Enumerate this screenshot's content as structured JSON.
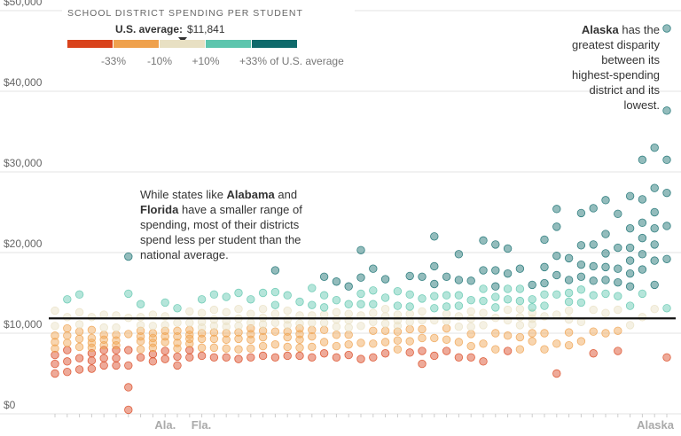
{
  "chart_data": {
    "type": "strip",
    "title": "SCHOOL DISTRICT SPENDING PER STUDENT",
    "average_label": "U.S. average:",
    "average": {
      "value": 11841,
      "label": "$11,841"
    },
    "color_scale": {
      "colors": [
        "#d9431c",
        "#efa14d",
        "#e8e0c3",
        "#5cc5ad",
        "#0f6a6b"
      ],
      "breaks": [
        {
          "value": -33,
          "label": "-33%"
        },
        {
          "value": -10,
          "label": "-10%"
        },
        {
          "value": 10,
          "label": "+10%"
        },
        {
          "value": 33,
          "label": "+33% of U.S. average"
        }
      ]
    },
    "ylim": [
      0,
      50000
    ],
    "yticks": [
      {
        "value": 0,
        "label": "$0"
      },
      {
        "value": 10000,
        "label": "$10,000"
      },
      {
        "value": 20000,
        "label": "$20,000"
      },
      {
        "value": 30000,
        "label": "$30,000"
      },
      {
        "value": 40000,
        "label": "$40,000"
      },
      {
        "value": 50000,
        "label": "$50,000"
      }
    ],
    "grid": true,
    "categories": [
      null,
      null,
      null,
      null,
      null,
      null,
      null,
      null,
      "Ala.",
      null,
      null,
      "Fla.",
      null,
      null,
      null,
      null,
      null,
      null,
      null,
      null,
      null,
      null,
      null,
      null,
      null,
      null,
      null,
      null,
      null,
      null,
      null,
      null,
      null,
      null,
      null,
      null,
      null,
      null,
      null,
      null,
      null,
      null,
      null,
      null,
      null,
      null,
      null,
      null,
      null,
      null,
      "Alaska"
    ],
    "values": [
      [
        5000,
        6200,
        7300,
        8100,
        8900,
        9700,
        10900,
        12800
      ],
      [
        5200,
        6500,
        7900,
        8800,
        9700,
        10600,
        12000,
        14200
      ],
      [
        5500,
        6900,
        8300,
        9300,
        10200,
        11100,
        12600,
        14800
      ],
      [
        5600,
        6600,
        7500,
        8200,
        8800,
        9400,
        10400,
        12000
      ],
      [
        6000,
        6900,
        7900,
        8500,
        9200,
        9800,
        10700,
        12300
      ],
      [
        6000,
        6900,
        7900,
        8500,
        9100,
        9800,
        10700,
        12200
      ],
      [
        500,
        3300,
        6000,
        7900,
        9900,
        11900,
        14900,
        19500
      ],
      [
        7000,
        8000,
        9000,
        9600,
        10300,
        11000,
        12000,
        13600
      ],
      [
        6500,
        7400,
        8200,
        8800,
        9400,
        10000,
        10900,
        12300
      ],
      [
        6800,
        7800,
        8900,
        9600,
        10300,
        11000,
        12100,
        13800
      ],
      [
        6000,
        7100,
        8100,
        8800,
        9600,
        10300,
        11300,
        13100
      ],
      [
        7000,
        7900,
        8700,
        9300,
        9800,
        10400,
        11300,
        12700
      ],
      [
        7200,
        8200,
        9300,
        10000,
        10700,
        11400,
        12500,
        14200
      ],
      [
        7000,
        8200,
        9300,
        10100,
        10900,
        11700,
        12900,
        14800
      ],
      [
        7000,
        8100,
        9200,
        10000,
        10800,
        11500,
        12600,
        14500
      ],
      [
        6800,
        8000,
        9300,
        10100,
        10900,
        11800,
        13000,
        15000
      ],
      [
        7000,
        8100,
        9200,
        9900,
        10600,
        11300,
        12400,
        14200
      ],
      [
        7200,
        8400,
        9500,
        10300,
        11100,
        11900,
        13000,
        15000
      ],
      [
        7000,
        8600,
        10200,
        11300,
        12400,
        13500,
        15100,
        17800
      ],
      [
        7200,
        8300,
        9500,
        10200,
        11000,
        11700,
        12800,
        14700
      ],
      [
        7200,
        8200,
        9200,
        9900,
        10600,
        11200,
        12200,
        13900
      ],
      [
        7000,
        8300,
        9600,
        10400,
        11300,
        12200,
        13500,
        15600
      ],
      [
        7500,
        8900,
        10400,
        11300,
        12300,
        13200,
        14700,
        17000
      ],
      [
        7000,
        8400,
        9800,
        10800,
        11700,
        12600,
        14100,
        16400
      ],
      [
        7300,
        8600,
        9800,
        10700,
        11600,
        12400,
        13600,
        15800
      ],
      [
        6800,
        8800,
        10900,
        12200,
        13600,
        14900,
        16900,
        20300
      ],
      [
        7000,
        8700,
        10300,
        11400,
        12500,
        13600,
        15300,
        18000
      ],
      [
        7500,
        8900,
        10300,
        11200,
        12100,
        13000,
        14400,
        16700
      ],
      [
        8000,
        9100,
        10200,
        10900,
        11600,
        12300,
        13400,
        15200
      ],
      [
        7600,
        9000,
        10500,
        11400,
        12400,
        13300,
        14800,
        17100
      ],
      [
        6200,
        7800,
        9400,
        10500,
        11600,
        12700,
        14300,
        17000
      ],
      [
        7200,
        9400,
        11600,
        13100,
        14600,
        16100,
        18300,
        22000
      ],
      [
        7800,
        9200,
        10600,
        11500,
        12400,
        13300,
        14700,
        17000
      ],
      [
        7000,
        8900,
        10800,
        12100,
        13400,
        14700,
        16600,
        19800
      ],
      [
        7000,
        8400,
        9900,
        10800,
        11800,
        12700,
        14100,
        16500
      ],
      [
        6500,
        8700,
        11000,
        12500,
        14000,
        15500,
        17800,
        21500
      ],
      [
        8000,
        10000,
        11900,
        13200,
        14500,
        15800,
        17800,
        21000
      ],
      [
        7800,
        9700,
        11600,
        12900,
        14200,
        15500,
        17400,
        20500
      ],
      [
        8000,
        9500,
        11000,
        12000,
        13000,
        14000,
        15500,
        18000
      ],
      [
        9000,
        10000,
        11100,
        11800,
        12500,
        13200,
        14200,
        16000
      ],
      [
        8000,
        10000,
        12100,
        13400,
        14800,
        16200,
        18200,
        21600
      ],
      [
        5000,
        8700,
        12300,
        14800,
        17200,
        19600,
        23200,
        25400
      ],
      [
        8500,
        10100,
        11700,
        12800,
        13900,
        15000,
        16600,
        19300
      ],
      [
        9000,
        11400,
        13800,
        15400,
        17000,
        18500,
        20900,
        24900
      ],
      [
        7500,
        10200,
        12900,
        14700,
        16500,
        18300,
        21000,
        25500
      ],
      [
        10000,
        12500,
        14900,
        16600,
        18200,
        19900,
        22300,
        26500
      ],
      [
        7800,
        10300,
        12900,
        14600,
        16300,
        18000,
        20600,
        24800
      ],
      [
        11000,
        13400,
        15800,
        17400,
        19000,
        20600,
        23000,
        27000
      ],
      [
        12000,
        14900,
        17900,
        19800,
        21800,
        23700,
        26600,
        31500
      ],
      [
        13000,
        16000,
        19000,
        21000,
        23000,
        25000,
        28000,
        33000
      ],
      [
        7000,
        13100,
        19200,
        23300,
        27400,
        31500,
        37600,
        47800
      ]
    ],
    "annotations": [
      {
        "lines": [
          [
            "While states like ",
            "Alabama",
            " and"
          ],
          [
            "Florida",
            " have a smaller range of"
          ],
          [
            "spending, most of their districts"
          ],
          [
            "spend less per student than the"
          ],
          [
            "national average."
          ]
        ]
      },
      {
        "lines": [
          [
            "Alaska",
            " has the"
          ],
          [
            "greatest disparity"
          ],
          [
            "between its"
          ],
          [
            "highest-spending"
          ],
          [
            "district and its"
          ],
          [
            "lowest."
          ]
        ]
      }
    ]
  }
}
